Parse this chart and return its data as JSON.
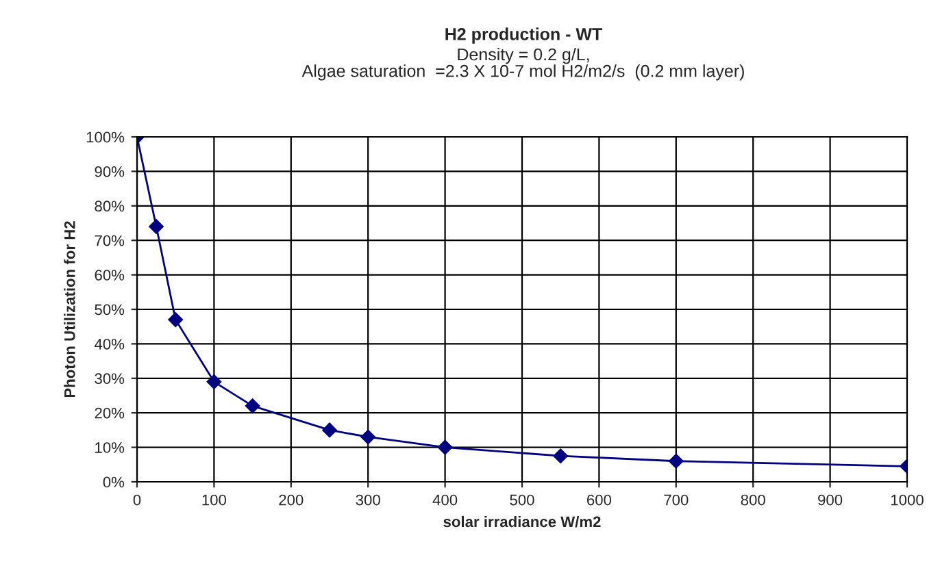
{
  "chart_data": {
    "type": "line",
    "title": "H2 production - WT",
    "subtitle": "Density = 0.2 g/L,\nAlgae saturation  =2.3 X 10-7 mol H2/m2/s  (0.2 mm layer)",
    "xlabel": "solar irradiance W/m2",
    "ylabel": "Photon Utilization for H2",
    "x": [
      0,
      25,
      50,
      100,
      150,
      250,
      300,
      400,
      550,
      700,
      1000
    ],
    "series": [
      {
        "color": "#000080",
        "values": [
          100,
          74,
          47,
          29,
          22,
          15,
          13,
          10,
          7.5,
          6,
          4.5
        ]
      }
    ],
    "xlim": [
      0,
      1000
    ],
    "xticks": [
      0,
      100,
      200,
      300,
      400,
      500,
      600,
      700,
      800,
      900,
      1000
    ],
    "ylim": [
      0,
      100
    ],
    "yticks": [
      {
        "value": 0,
        "label": "0%"
      },
      {
        "value": 10,
        "label": "10%"
      },
      {
        "value": 20,
        "label": "20%"
      },
      {
        "value": 30,
        "label": "30%"
      },
      {
        "value": 40,
        "label": "40%"
      },
      {
        "value": 50,
        "label": "50%"
      },
      {
        "value": 60,
        "label": "60%"
      },
      {
        "value": 70,
        "label": "70%"
      },
      {
        "value": 80,
        "label": "80%"
      },
      {
        "value": 90,
        "label": "90%"
      },
      {
        "value": 100,
        "label": "100%"
      }
    ],
    "grid": true,
    "marker": "diamond",
    "line_style": "solid",
    "legend": false
  }
}
